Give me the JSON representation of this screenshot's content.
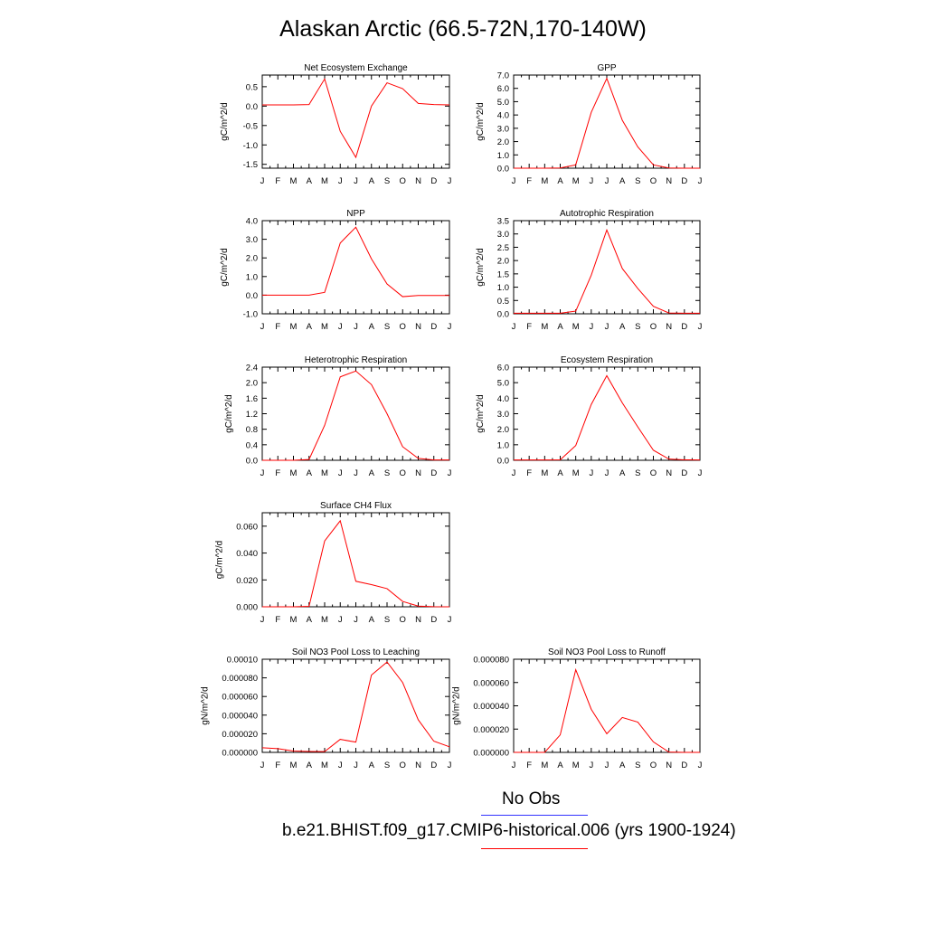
{
  "title": "Alaskan Arctic (66.5-72N,170-140W)",
  "legend": {
    "obs_label": "No Obs",
    "obs_color": "#3333ff",
    "model_label": "b.e21.BHIST.f09_g17.CMIP6-historical.006 (yrs 1900-1924)",
    "model_color": "#ff0000"
  },
  "chart_data": [
    {
      "type": "line",
      "title": "Net Ecosystem Exchange",
      "ylabel": "gC/m^2/d",
      "categories": [
        "J",
        "F",
        "M",
        "A",
        "M",
        "J",
        "J",
        "A",
        "S",
        "O",
        "N",
        "D",
        "J"
      ],
      "ylim": [
        -1.6,
        0.8
      ],
      "yticks": [
        -1.5,
        -1.0,
        -0.5,
        0.0,
        0.5
      ],
      "ytick_labels": [
        "-1.5",
        "-1.0",
        "-0.5",
        "0.0",
        "0.5"
      ],
      "series": [
        {
          "color": "#ff0000",
          "values": [
            0.03,
            0.03,
            0.03,
            0.04,
            0.7,
            -0.65,
            -1.32,
            0.0,
            0.6,
            0.45,
            0.07,
            0.04,
            0.03
          ]
        }
      ]
    },
    {
      "type": "line",
      "title": "GPP",
      "ylabel": "gC/m^2/d",
      "categories": [
        "J",
        "F",
        "M",
        "A",
        "M",
        "J",
        "J",
        "A",
        "S",
        "O",
        "N",
        "D",
        "J"
      ],
      "ylim": [
        0,
        7.0
      ],
      "yticks": [
        0,
        1,
        2,
        3,
        4,
        5,
        6,
        7
      ],
      "ytick_labels": [
        "0.0",
        "1.0",
        "2.0",
        "3.0",
        "4.0",
        "5.0",
        "6.0",
        "7.0"
      ],
      "series": [
        {
          "color": "#ff0000",
          "values": [
            0,
            0,
            0,
            0.02,
            0.25,
            4.2,
            6.75,
            3.6,
            1.6,
            0.25,
            0.02,
            0,
            0
          ]
        }
      ]
    },
    {
      "type": "line",
      "title": "NPP",
      "ylabel": "gC/m^2/d",
      "categories": [
        "J",
        "F",
        "M",
        "A",
        "M",
        "J",
        "J",
        "A",
        "S",
        "O",
        "N",
        "D",
        "J"
      ],
      "ylim": [
        -1.0,
        4.0
      ],
      "yticks": [
        -1,
        0,
        1,
        2,
        3,
        4
      ],
      "ytick_labels": [
        "-1.0",
        "0.0",
        "1.0",
        "2.0",
        "3.0",
        "4.0"
      ],
      "series": [
        {
          "color": "#ff0000",
          "values": [
            0,
            0,
            0,
            0,
            0.15,
            2.8,
            3.65,
            1.95,
            0.6,
            -0.08,
            -0.02,
            -0.02,
            -0.02
          ]
        }
      ]
    },
    {
      "type": "line",
      "title": "Autotrophic Respiration",
      "ylabel": "gC/m^2/d",
      "categories": [
        "J",
        "F",
        "M",
        "A",
        "M",
        "J",
        "J",
        "A",
        "S",
        "O",
        "N",
        "D",
        "J"
      ],
      "ylim": [
        0,
        3.5
      ],
      "yticks": [
        0,
        0.5,
        1,
        1.5,
        2,
        2.5,
        3,
        3.5
      ],
      "ytick_labels": [
        "0.0",
        "0.5",
        "1.0",
        "1.5",
        "2.0",
        "2.5",
        "3.0",
        "3.5"
      ],
      "series": [
        {
          "color": "#ff0000",
          "values": [
            0.02,
            0.02,
            0.02,
            0.02,
            0.1,
            1.45,
            3.15,
            1.7,
            0.95,
            0.28,
            0.03,
            0.02,
            0.02
          ]
        }
      ]
    },
    {
      "type": "line",
      "title": "Heterotrophic Respiration",
      "ylabel": "gC/m^2/d",
      "categories": [
        "J",
        "F",
        "M",
        "A",
        "M",
        "J",
        "J",
        "A",
        "S",
        "O",
        "N",
        "D",
        "J"
      ],
      "ylim": [
        0,
        2.4
      ],
      "yticks": [
        0,
        0.4,
        0.8,
        1.2,
        1.6,
        2.0,
        2.4
      ],
      "ytick_labels": [
        "0.0",
        "0.4",
        "0.8",
        "1.2",
        "1.6",
        "2.0",
        "2.4"
      ],
      "series": [
        {
          "color": "#ff0000",
          "values": [
            0,
            0,
            0,
            0.02,
            0.9,
            2.15,
            2.3,
            1.95,
            1.2,
            0.35,
            0.05,
            0.01,
            0.01
          ]
        }
      ]
    },
    {
      "type": "line",
      "title": "Ecosystem Respiration",
      "ylabel": "gC/m^2/d",
      "categories": [
        "J",
        "F",
        "M",
        "A",
        "M",
        "J",
        "J",
        "A",
        "S",
        "O",
        "N",
        "D",
        "J"
      ],
      "ylim": [
        0,
        6.0
      ],
      "yticks": [
        0,
        1,
        2,
        3,
        4,
        5,
        6
      ],
      "ytick_labels": [
        "0.0",
        "1.0",
        "2.0",
        "3.0",
        "4.0",
        "5.0",
        "6.0"
      ],
      "series": [
        {
          "color": "#ff0000",
          "values": [
            0.02,
            0.02,
            0.02,
            0.03,
            0.95,
            3.6,
            5.45,
            3.7,
            2.15,
            0.65,
            0.08,
            0.03,
            0.02
          ]
        }
      ]
    },
    {
      "type": "line",
      "title": "Surface CH4 Flux",
      "ylabel": "gC/m^2/d",
      "categories": [
        "J",
        "F",
        "M",
        "A",
        "M",
        "J",
        "J",
        "A",
        "S",
        "O",
        "N",
        "D",
        "J"
      ],
      "ylim": [
        0,
        0.07
      ],
      "yticks": [
        0,
        0.02,
        0.04,
        0.06
      ],
      "ytick_labels": [
        "0.000",
        "0.020",
        "0.040",
        "0.060"
      ],
      "series": [
        {
          "color": "#ff0000",
          "values": [
            0,
            0,
            0,
            0.0003,
            0.049,
            0.064,
            0.019,
            0.0165,
            0.0135,
            0.004,
            0.0005,
            0.0001,
            0
          ]
        }
      ]
    },
    {
      "type": "line",
      "title": "Soil NO3 Pool Loss to Leaching",
      "ylabel": "gN/m^2/d",
      "categories": [
        "J",
        "F",
        "M",
        "A",
        "M",
        "J",
        "J",
        "A",
        "S",
        "O",
        "N",
        "D",
        "J"
      ],
      "ylim": [
        0,
        0.0001
      ],
      "yticks": [
        0,
        2e-05,
        4e-05,
        6e-05,
        8e-05,
        0.0001
      ],
      "ytick_labels": [
        "0.000000",
        "0.000020",
        "0.000040",
        "0.000060",
        "0.000080",
        "0.00010"
      ],
      "series": [
        {
          "color": "#ff0000",
          "values": [
            5e-06,
            4e-06,
            1.5e-06,
            1e-06,
            8e-07,
            1.4e-05,
            1.1e-05,
            8.3e-05,
            9.7e-05,
            7.5e-05,
            3.5e-05,
            1.2e-05,
            6e-06
          ]
        }
      ]
    },
    {
      "type": "line",
      "title": "Soil NO3 Pool Loss to Runoff",
      "ylabel": "gN/m^2/d",
      "categories": [
        "J",
        "F",
        "M",
        "A",
        "M",
        "J",
        "J",
        "A",
        "S",
        "O",
        "N",
        "D",
        "J"
      ],
      "ylim": [
        0,
        8e-05
      ],
      "yticks": [
        0,
        2e-05,
        4e-05,
        6e-05,
        8e-05
      ],
      "ytick_labels": [
        "0.000000",
        "0.000020",
        "0.000040",
        "0.000060",
        "0.000080"
      ],
      "series": [
        {
          "color": "#ff0000",
          "values": [
            0,
            0,
            0,
            1.5e-05,
            7.1e-05,
            3.7e-05,
            1.6e-05,
            3e-05,
            2.6e-05,
            9e-06,
            3e-07,
            0,
            0
          ]
        }
      ]
    }
  ]
}
